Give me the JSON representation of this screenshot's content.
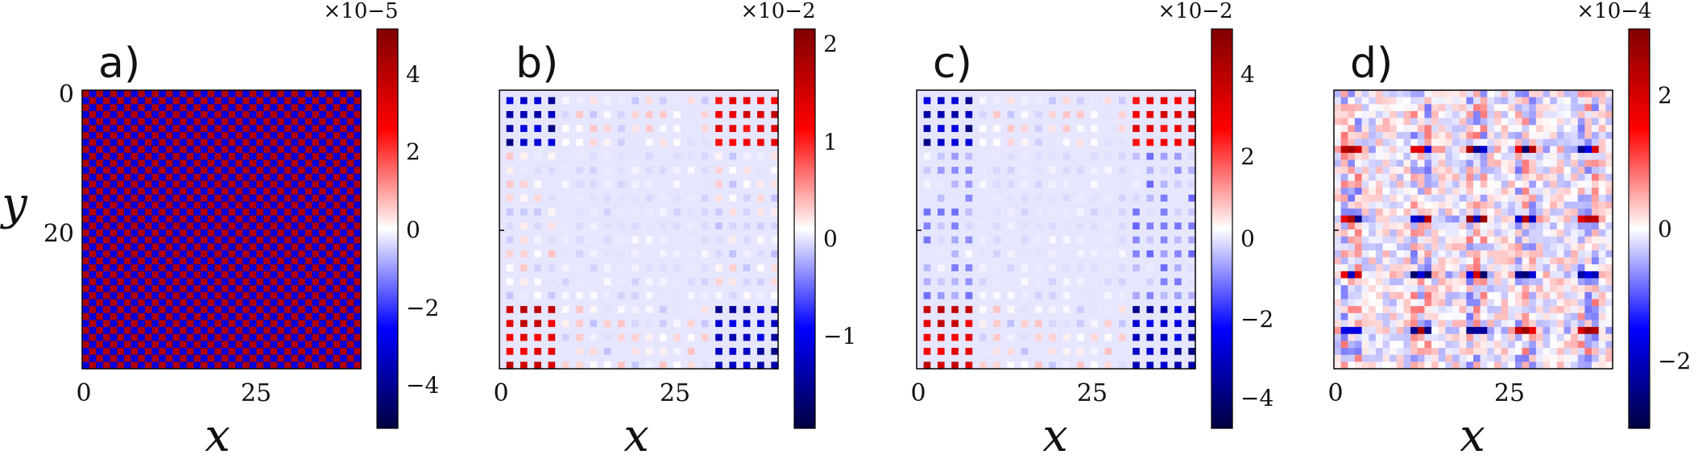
{
  "chart_data": [
    {
      "type": "heatmap",
      "panel_label": "a)",
      "xlabel": "x",
      "ylabel": "y",
      "x_ticks": [
        "0",
        "25"
      ],
      "y_ticks": [
        "0",
        "20"
      ],
      "grid_size": [
        40,
        40
      ],
      "pattern": "checkerboard",
      "colormap": "seismic",
      "colorbar": {
        "multiplier": "×10−5",
        "ticks": [
          "4",
          "2",
          "0",
          "−2",
          "−4"
        ],
        "range": [
          -5,
          5
        ]
      }
    },
    {
      "type": "heatmap",
      "panel_label": "b)",
      "xlabel": "x",
      "x_ticks": [
        "0",
        "25"
      ],
      "grid_size": [
        40,
        40
      ],
      "pattern": "corner-blocks",
      "colormap": "seismic",
      "colorbar": {
        "multiplier": "×10−2",
        "ticks": [
          "2",
          "1",
          "0",
          "−1"
        ],
        "range": [
          -2.2,
          2.2
        ]
      }
    },
    {
      "type": "heatmap",
      "panel_label": "c)",
      "xlabel": "x",
      "x_ticks": [
        "0",
        "25"
      ],
      "grid_size": [
        40,
        40
      ],
      "pattern": "corner-blocks",
      "colormap": "seismic",
      "colorbar": {
        "multiplier": "×10−2",
        "ticks": [
          "4",
          "2",
          "0",
          "−2",
          "−4"
        ],
        "range": [
          -5.2,
          5.2
        ]
      }
    },
    {
      "type": "heatmap",
      "panel_label": "d)",
      "xlabel": "x",
      "x_ticks": [
        "0",
        "25"
      ],
      "grid_size": [
        40,
        40
      ],
      "pattern": "stripes",
      "colormap": "seismic",
      "colorbar": {
        "multiplier": "×10−4",
        "ticks": [
          "2",
          "0",
          "−2"
        ],
        "range": [
          -3,
          3
        ]
      }
    }
  ]
}
